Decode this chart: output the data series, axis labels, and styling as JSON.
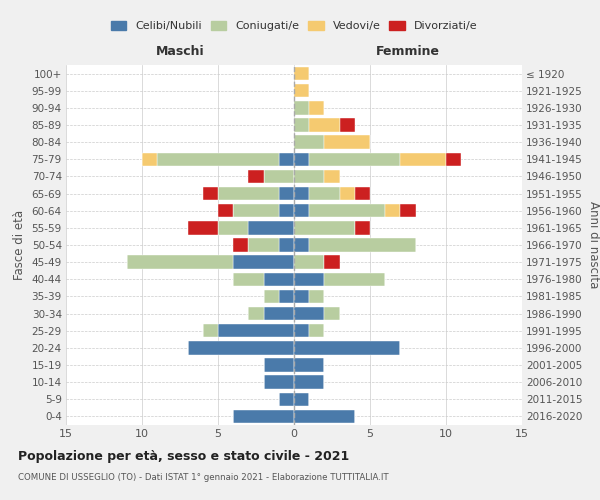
{
  "age_groups": [
    "0-4",
    "5-9",
    "10-14",
    "15-19",
    "20-24",
    "25-29",
    "30-34",
    "35-39",
    "40-44",
    "45-49",
    "50-54",
    "55-59",
    "60-64",
    "65-69",
    "70-74",
    "75-79",
    "80-84",
    "85-89",
    "90-94",
    "95-99",
    "100+"
  ],
  "birth_years": [
    "2016-2020",
    "2011-2015",
    "2006-2010",
    "2001-2005",
    "1996-2000",
    "1991-1995",
    "1986-1990",
    "1981-1985",
    "1976-1980",
    "1971-1975",
    "1966-1970",
    "1961-1965",
    "1956-1960",
    "1951-1955",
    "1946-1950",
    "1941-1945",
    "1936-1940",
    "1931-1935",
    "1926-1930",
    "1921-1925",
    "≤ 1920"
  ],
  "colors": {
    "celibi": "#4a7aaa",
    "coniugati": "#b8cda0",
    "vedovi": "#f5ca70",
    "divorziati": "#cc2020"
  },
  "maschi": {
    "celibi": [
      4,
      1,
      2,
      2,
      7,
      5,
      2,
      1,
      2,
      4,
      1,
      3,
      1,
      1,
      0,
      1,
      0,
      0,
      0,
      0,
      0
    ],
    "coniugati": [
      0,
      0,
      0,
      0,
      0,
      1,
      1,
      1,
      2,
      7,
      2,
      2,
      3,
      4,
      2,
      8,
      0,
      0,
      0,
      0,
      0
    ],
    "vedovi": [
      0,
      0,
      0,
      0,
      0,
      0,
      0,
      0,
      0,
      0,
      0,
      0,
      0,
      0,
      0,
      1,
      0,
      0,
      0,
      0,
      0
    ],
    "divorziati": [
      0,
      0,
      0,
      0,
      0,
      0,
      0,
      0,
      0,
      0,
      1,
      2,
      1,
      1,
      1,
      0,
      0,
      0,
      0,
      0,
      0
    ]
  },
  "femmine": {
    "celibi": [
      4,
      1,
      2,
      2,
      7,
      1,
      2,
      1,
      2,
      0,
      1,
      0,
      1,
      1,
      0,
      1,
      0,
      0,
      0,
      0,
      0
    ],
    "coniugati": [
      0,
      0,
      0,
      0,
      0,
      1,
      1,
      1,
      4,
      2,
      7,
      4,
      5,
      2,
      2,
      6,
      2,
      1,
      1,
      0,
      0
    ],
    "vedovi": [
      0,
      0,
      0,
      0,
      0,
      0,
      0,
      0,
      0,
      0,
      0,
      0,
      1,
      1,
      1,
      3,
      3,
      2,
      1,
      1,
      1
    ],
    "divorziati": [
      0,
      0,
      0,
      0,
      0,
      0,
      0,
      0,
      0,
      1,
      0,
      1,
      1,
      1,
      0,
      1,
      0,
      1,
      0,
      0,
      0
    ]
  },
  "xlim": 15,
  "title": "Popolazione per età, sesso e stato civile - 2021",
  "subtitle": "COMUNE DI USSEGLIO (TO) - Dati ISTAT 1° gennaio 2021 - Elaborazione TUTTITALIA.IT",
  "xlabel_left": "Maschi",
  "xlabel_right": "Femmine",
  "ylabel_left": "Fasce di età",
  "ylabel_right": "Anni di nascita",
  "bg_color": "#f0f0f0",
  "plot_bg": "#ffffff",
  "legend_labels": [
    "Celibi/Nubili",
    "Coniugati/e",
    "Vedovi/e",
    "Divorziati/e"
  ]
}
